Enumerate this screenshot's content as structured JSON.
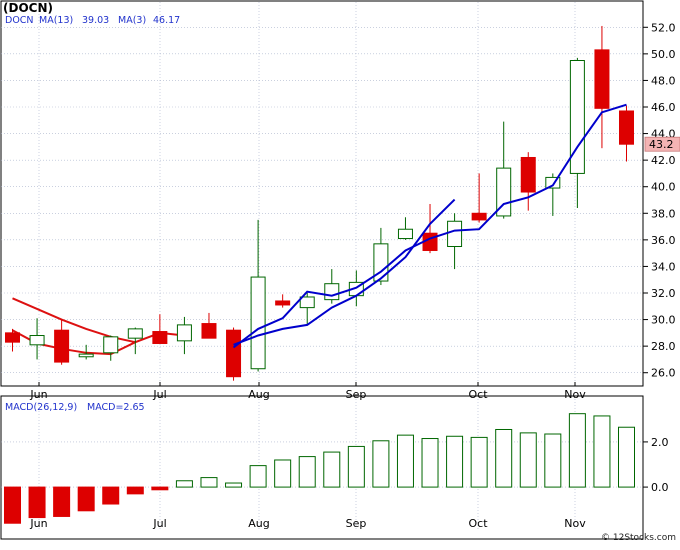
{
  "chart_data": [
    {
      "type": "candlestick",
      "title": "(DOCN)",
      "legend": {
        "ticker": "DOCN",
        "ma13_label": "MA(13)",
        "ma13_value": "39.03",
        "ma3_label": "MA(3)",
        "ma3_value": "46.17"
      },
      "ylim": [
        25,
        53
      ],
      "y_ticks": [
        "26.0",
        "28.0",
        "30.0",
        "32.0",
        "34.0",
        "36.0",
        "38.0",
        "40.0",
        "42.0",
        "44.0",
        "46.0",
        "48.0",
        "50.0",
        "52.0"
      ],
      "x_ticks": [
        "Jun",
        "Jul",
        "Aug",
        "Sep",
        "Oct",
        "Nov"
      ],
      "last_price_label": "43.2",
      "grid": true,
      "candles": [
        {
          "o": 29.0,
          "h": 29.3,
          "l": 27.6,
          "c": 28.3
        },
        {
          "o": 28.1,
          "h": 30.1,
          "l": 27.0,
          "c": 28.8
        },
        {
          "o": 29.2,
          "h": 30.0,
          "l": 26.6,
          "c": 26.8
        },
        {
          "o": 27.2,
          "h": 28.1,
          "l": 27.0,
          "c": 27.4
        },
        {
          "o": 27.5,
          "h": 28.8,
          "l": 26.9,
          "c": 28.7
        },
        {
          "o": 28.6,
          "h": 29.4,
          "l": 27.4,
          "c": 29.3
        },
        {
          "o": 29.1,
          "h": 30.4,
          "l": 28.2,
          "c": 28.2
        },
        {
          "o": 28.4,
          "h": 30.2,
          "l": 27.4,
          "c": 29.6
        },
        {
          "o": 29.7,
          "h": 30.5,
          "l": 28.8,
          "c": 28.6
        },
        {
          "o": 29.2,
          "h": 29.4,
          "l": 25.4,
          "c": 25.7
        },
        {
          "o": 26.3,
          "h": 37.5,
          "l": 26.1,
          "c": 33.2
        },
        {
          "o": 31.4,
          "h": 31.9,
          "l": 30.9,
          "c": 31.1
        },
        {
          "o": 30.9,
          "h": 32.0,
          "l": 29.6,
          "c": 31.7
        },
        {
          "o": 31.5,
          "h": 33.8,
          "l": 31.2,
          "c": 32.7
        },
        {
          "o": 31.8,
          "h": 33.7,
          "l": 31.0,
          "c": 32.8
        },
        {
          "o": 32.9,
          "h": 36.9,
          "l": 32.6,
          "c": 35.7
        },
        {
          "o": 36.1,
          "h": 37.7,
          "l": 36.0,
          "c": 36.8
        },
        {
          "o": 36.5,
          "h": 38.7,
          "l": 35.0,
          "c": 35.2
        },
        {
          "o": 35.5,
          "h": 38.0,
          "l": 33.8,
          "c": 37.4
        },
        {
          "o": 38.0,
          "h": 41.0,
          "l": 37.3,
          "c": 37.5
        },
        {
          "o": 37.8,
          "h": 44.9,
          "l": 37.6,
          "c": 41.4
        },
        {
          "o": 42.2,
          "h": 42.6,
          "l": 38.2,
          "c": 39.6
        },
        {
          "o": 39.9,
          "h": 41.0,
          "l": 37.8,
          "c": 40.7
        },
        {
          "o": 41.0,
          "h": 49.7,
          "l": 38.4,
          "c": 49.5
        },
        {
          "o": 50.3,
          "h": 52.1,
          "l": 42.9,
          "c": 45.9
        },
        {
          "o": 45.7,
          "h": 46.1,
          "l": 41.9,
          "c": 43.2
        }
      ],
      "ma13_red": [
        31.6,
        30.8,
        30.0,
        29.3,
        28.7,
        28.3
      ],
      "ma13_blue": [
        28.1,
        28.8,
        29.3,
        29.6,
        30.9,
        31.8,
        33.1,
        34.7,
        37.2,
        39.03
      ],
      "ma3_red": [
        29.2,
        28.2,
        27.8,
        27.5,
        27.4,
        28.3,
        29.0,
        28.8
      ],
      "ma3_blue": [
        27.9,
        29.3,
        30.1,
        32.1,
        31.8,
        32.4,
        33.6,
        35.2,
        36.1,
        36.7,
        36.8,
        38.7,
        39.2,
        40.1,
        43.0,
        45.6,
        46.17
      ]
    },
    {
      "type": "bar",
      "legend": {
        "label": "MACD(26,12,9)",
        "value_label": "MACD=2.65"
      },
      "ylim": [
        -1.9,
        3.9
      ],
      "y_ticks": [
        "2.0",
        "0.0"
      ],
      "x_ticks": [
        "Jun",
        "Jul",
        "Aug",
        "Sep",
        "Oct",
        "Nov"
      ],
      "values": [
        -1.6,
        -1.35,
        -1.3,
        -1.05,
        -0.75,
        -0.3,
        -0.12,
        0.28,
        0.42,
        0.18,
        0.95,
        1.2,
        1.35,
        1.55,
        1.8,
        2.05,
        2.3,
        2.15,
        2.25,
        2.2,
        2.55,
        2.4,
        2.35,
        3.25,
        3.15,
        2.65
      ]
    }
  ],
  "watermark": "© 12Stocks.com",
  "colors": {
    "up": "#006600",
    "down": "#dd0000",
    "ma_red": "#dd1111",
    "ma_blue": "#0000cc",
    "grid": "#aab4cc",
    "last_bg": "#f4b4b4"
  }
}
